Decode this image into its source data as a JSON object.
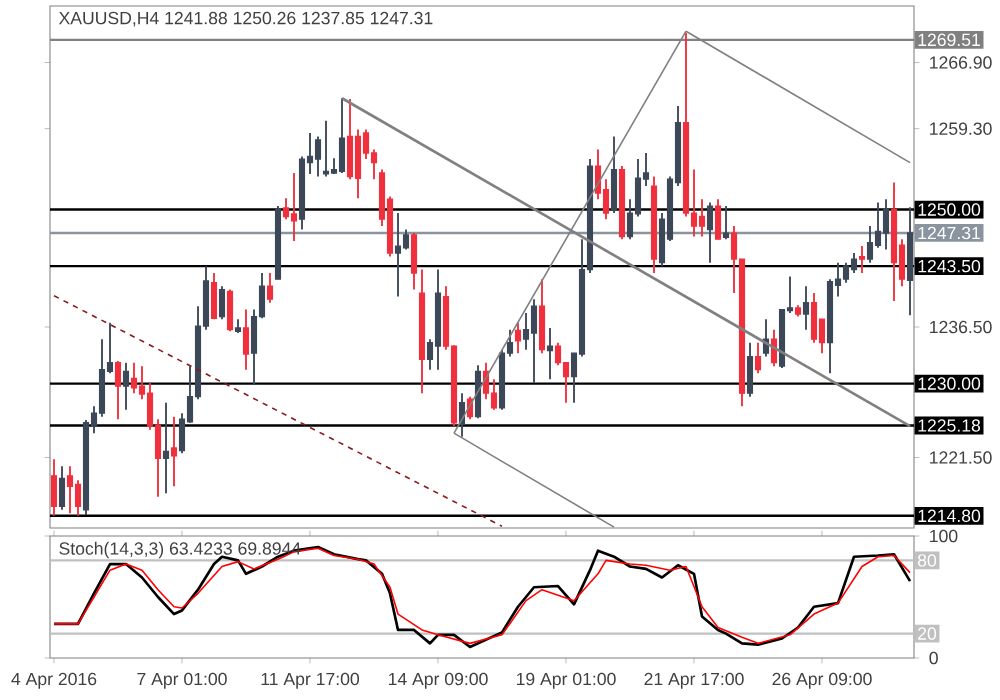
{
  "chart_data": [
    {
      "type": "candlestick",
      "title": "XAUUSD,H4  1241.88 1250.26 1237.85 1247.31",
      "categories": [
        null,
        null,
        null,
        null,
        null,
        null,
        null,
        null,
        null,
        null,
        null,
        null,
        null,
        null,
        null,
        null,
        null,
        null,
        null,
        null,
        null,
        null,
        null,
        null,
        null,
        null,
        null,
        null,
        null,
        null,
        null,
        null,
        null,
        null,
        null,
        null,
        null,
        null,
        null,
        null,
        null,
        null,
        null,
        null,
        null,
        null,
        null,
        null,
        null,
        null,
        null,
        null,
        null,
        null,
        null,
        null,
        null,
        null,
        null,
        null,
        null,
        null,
        null,
        null,
        null,
        null,
        null,
        null,
        null,
        null,
        null,
        null,
        null,
        null,
        null,
        null,
        null,
        null,
        null,
        null,
        null,
        null,
        null,
        null,
        null,
        null,
        null,
        null,
        null,
        null,
        null,
        null,
        null,
        null,
        null,
        null,
        null,
        null,
        null,
        null,
        null,
        null,
        null,
        null,
        null,
        null,
        null,
        null
      ],
      "ohlc": [
        [
          1219.4,
          1221.3,
          1214.8,
          1215.9
        ],
        [
          1215.9,
          1220.5,
          1215.5,
          1219.1
        ],
        [
          1219.4,
          1220.5,
          1215.1,
          1218.2
        ],
        [
          1218.4,
          1218.9,
          1214.8,
          1215.9
        ],
        [
          1215.5,
          1225.8,
          1214.9,
          1225.5
        ],
        [
          1225.1,
          1227.4,
          1224.3,
          1226.6
        ],
        [
          1226.6,
          1235.1,
          1226.2,
          1231.6
        ],
        [
          1231.4,
          1237.0,
          1231.2,
          1232.4
        ],
        [
          1232.4,
          1232.6,
          1225.9,
          1229.7
        ],
        [
          1229.7,
          1232.4,
          1227.0,
          1231.4
        ],
        [
          1230.6,
          1232.4,
          1228.9,
          1229.5
        ],
        [
          1229.7,
          1232.0,
          1228.2,
          1228.8
        ],
        [
          1228.9,
          1230.1,
          1224.7,
          1225.1
        ],
        [
          1225.2,
          1225.9,
          1217.0,
          1221.4
        ],
        [
          1221.4,
          1227.8,
          1217.4,
          1222.2
        ],
        [
          1222.6,
          1226.2,
          1218.2,
          1221.7
        ],
        [
          1222.3,
          1226.6,
          1222.0,
          1225.9
        ],
        [
          1225.6,
          1232.0,
          1225.5,
          1228.5
        ],
        [
          1228.5,
          1238.9,
          1228.2,
          1236.6
        ],
        [
          1236.6,
          1243.5,
          1236.2,
          1241.8
        ],
        [
          1241.6,
          1242.7,
          1237.4,
          1237.5
        ],
        [
          1237.7,
          1241.2,
          1237.4,
          1240.8
        ],
        [
          1240.6,
          1240.8,
          1236.0,
          1236.2
        ],
        [
          1236.0,
          1237.4,
          1235.8,
          1236.4
        ],
        [
          1236.4,
          1238.5,
          1231.6,
          1233.4
        ],
        [
          1233.5,
          1238.5,
          1229.9,
          1237.7
        ],
        [
          1237.7,
          1242.7,
          1237.5,
          1241.2
        ],
        [
          1241.2,
          1242.7,
          1239.3,
          1239.7
        ],
        [
          1242.0,
          1250.4,
          1242.0,
          1250.0
        ],
        [
          1250.2,
          1251.3,
          1248.9,
          1249.2
        ],
        [
          1249.5,
          1254.2,
          1246.4,
          1248.7
        ],
        [
          1248.9,
          1256.1,
          1247.7,
          1255.8
        ],
        [
          1255.4,
          1258.8,
          1254.1,
          1256.1
        ],
        [
          1255.8,
          1258.4,
          1253.8,
          1258.0
        ],
        [
          1254.1,
          1260.2,
          1253.8,
          1254.4
        ],
        [
          1254.2,
          1255.9,
          1254.1,
          1254.6
        ],
        [
          1254.4,
          1262.8,
          1254.2,
          1258.2
        ],
        [
          1258.4,
          1262.7,
          1253.5,
          1253.8
        ],
        [
          1258.4,
          1259.2,
          1251.3,
          1253.6
        ],
        [
          1258.8,
          1259.2,
          1255.8,
          1256.5
        ],
        [
          1256.5,
          1256.9,
          1253.5,
          1255.4
        ],
        [
          1254.2,
          1254.6,
          1248.1,
          1248.9
        ],
        [
          1251.2,
          1251.5,
          1244.6,
          1245.0
        ],
        [
          1245.0,
          1249.6,
          1240.0,
          1245.8
        ],
        [
          1245.6,
          1247.7,
          1245.4,
          1247.1
        ],
        [
          1247.1,
          1247.3,
          1240.8,
          1242.7
        ],
        [
          1240.4,
          1243.1,
          1228.9,
          1232.8
        ],
        [
          1232.8,
          1235.1,
          1231.6,
          1234.7
        ],
        [
          1234.3,
          1243.1,
          1231.6,
          1240.4
        ],
        [
          1240.0,
          1241.2,
          1233.9,
          1234.3
        ],
        [
          1234.3,
          1234.4,
          1225.1,
          1225.5
        ],
        [
          1225.3,
          1228.9,
          1223.9,
          1227.8
        ],
        [
          1228.2,
          1228.5,
          1225.9,
          1226.2
        ],
        [
          1226.2,
          1232.1,
          1226.0,
          1231.4
        ],
        [
          1231.4,
          1232.4,
          1228.2,
          1228.9
        ],
        [
          1228.9,
          1230.5,
          1227.0,
          1227.2
        ],
        [
          1227.2,
          1233.9,
          1227.0,
          1233.5
        ],
        [
          1233.5,
          1236.2,
          1233.1,
          1234.7
        ],
        [
          1236.1,
          1237.0,
          1233.5,
          1234.9
        ],
        [
          1235.1,
          1238.1,
          1233.9,
          1236.2
        ],
        [
          1235.8,
          1239.7,
          1230.1,
          1238.9
        ],
        [
          1238.9,
          1242.0,
          1233.5,
          1233.9
        ],
        [
          1233.8,
          1236.4,
          1230.5,
          1234.3
        ],
        [
          1234.3,
          1234.7,
          1232.1,
          1232.4
        ],
        [
          1232.4,
          1232.4,
          1227.8,
          1230.8
        ],
        [
          1230.8,
          1233.5,
          1227.8,
          1233.5
        ],
        [
          1233.4,
          1246.6,
          1233.1,
          1243.1
        ],
        [
          1243.1,
          1255.8,
          1242.7,
          1255.0
        ],
        [
          1255.0,
          1256.9,
          1251.2,
          1251.9
        ],
        [
          1252.3,
          1253.5,
          1248.9,
          1249.6
        ],
        [
          1250.0,
          1258.4,
          1249.6,
          1254.6
        ],
        [
          1254.6,
          1255.0,
          1246.6,
          1246.9
        ],
        [
          1246.9,
          1251.2,
          1246.6,
          1249.6
        ],
        [
          1249.5,
          1255.8,
          1249.2,
          1253.6
        ],
        [
          1253.5,
          1256.5,
          1252.7,
          1254.2
        ],
        [
          1252.7,
          1253.8,
          1242.7,
          1244.3
        ],
        [
          1243.9,
          1249.6,
          1243.5,
          1248.9
        ],
        [
          1246.6,
          1253.8,
          1246.4,
          1253.5
        ],
        [
          1253.1,
          1261.9,
          1252.7,
          1260.0
        ],
        [
          1260.0,
          1270.3,
          1249.2,
          1249.6
        ],
        [
          1249.6,
          1254.6,
          1246.9,
          1248.1
        ],
        [
          1249.2,
          1251.2,
          1246.9,
          1248.1
        ],
        [
          1247.7,
          1250.8,
          1243.9,
          1250.4
        ],
        [
          1250.4,
          1251.2,
          1246.6,
          1246.6
        ],
        [
          1246.8,
          1250.4,
          1246.6,
          1247.3
        ],
        [
          1247.3,
          1248.1,
          1240.4,
          1244.3
        ],
        [
          1244.3,
          1244.3,
          1227.4,
          1228.9
        ],
        [
          1228.9,
          1234.7,
          1228.5,
          1233.1
        ],
        [
          1233.1,
          1234.7,
          1231.2,
          1231.6
        ],
        [
          1233.5,
          1237.4,
          1233.1,
          1235.1
        ],
        [
          1235.1,
          1236.2,
          1232.0,
          1232.4
        ],
        [
          1232.0,
          1238.5,
          1231.8,
          1238.5
        ],
        [
          1238.4,
          1242.3,
          1238.1,
          1238.7
        ],
        [
          1238.7,
          1239.0,
          1237.7,
          1238.0
        ],
        [
          1238.0,
          1241.2,
          1236.2,
          1239.3
        ],
        [
          1239.3,
          1240.4,
          1234.7,
          1235.1
        ],
        [
          1237.4,
          1237.4,
          1233.5,
          1234.7
        ],
        [
          1234.7,
          1242.0,
          1231.2,
          1241.7
        ],
        [
          1241.3,
          1243.9,
          1240.0,
          1242.0
        ],
        [
          1242.0,
          1243.9,
          1241.6,
          1243.5
        ],
        [
          1243.1,
          1245.0,
          1242.7,
          1244.3
        ],
        [
          1244.6,
          1245.8,
          1242.7,
          1244.3
        ],
        [
          1244.3,
          1248.1,
          1243.9,
          1246.2
        ],
        [
          1245.9,
          1250.8,
          1245.6,
          1247.5
        ],
        [
          1247.3,
          1251.2,
          1245.4,
          1250.0
        ],
        [
          1250.0,
          1253.1,
          1239.5,
          1243.9
        ],
        [
          1245.9,
          1246.6,
          1241.2,
          1242.0
        ],
        [
          1241.88,
          1250.26,
          1237.85,
          1247.31
        ]
      ],
      "ylim": [
        1213.4,
        1273.4
      ],
      "yticks": [
        {
          "value": 1266.9,
          "label": "1266.90"
        },
        {
          "value": 1259.3,
          "label": "1259.30"
        },
        {
          "value": 1236.5,
          "label": "1236.50"
        },
        {
          "value": 1221.5,
          "label": "1221.50"
        }
      ],
      "tick_labels": "y",
      "ref_lines": [
        {
          "axis": "y",
          "value": 1269.51,
          "label": "1269.51",
          "color": "#808080"
        },
        {
          "axis": "y",
          "value": 1250.0,
          "label": "1250.00",
          "color": "#000000"
        },
        {
          "axis": "y",
          "value": 1247.31,
          "label": "1247.31",
          "color": "#8a949e"
        },
        {
          "axis": "y",
          "value": 1243.5,
          "label": "1243.50",
          "color": "#000000"
        },
        {
          "axis": "y",
          "value": 1230.0,
          "label": "1230.00",
          "color": "#000000"
        },
        {
          "axis": "y",
          "value": 1225.18,
          "label": "1225.18",
          "color": "#000000"
        },
        {
          "axis": "y",
          "value": 1214.8,
          "label": "1214.80",
          "color": "#000000"
        }
      ],
      "series": [
        {
          "type": "line",
          "color": "#808080",
          "values": [
            null,
            null,
            null,
            null,
            null,
            null,
            null,
            null,
            null,
            null,
            null,
            null,
            null,
            null,
            null,
            null,
            null,
            null,
            null,
            null,
            null,
            null,
            null,
            null,
            null,
            null,
            null,
            null,
            null,
            null,
            null,
            null,
            null,
            null,
            null,
            null,
            1262.8,
            null,
            null,
            null,
            null,
            null,
            null,
            null,
            null,
            null,
            null,
            null,
            null,
            null,
            null,
            null,
            null,
            null,
            null,
            null,
            null,
            null,
            null,
            null,
            null,
            null,
            null,
            null,
            null,
            null,
            null,
            null,
            null,
            null,
            null,
            null,
            null,
            null,
            null,
            null,
            null,
            null,
            null,
            null,
            null,
            null,
            null,
            null,
            null,
            null,
            null,
            null,
            null,
            null,
            null,
            null,
            null,
            null,
            null,
            null,
            null,
            null,
            null,
            null,
            null,
            null,
            null,
            null,
            null,
            null,
            null,
            1225.1
          ]
        },
        {
          "type": "line",
          "color": "#808080",
          "values": [
            null,
            null,
            null,
            null,
            null,
            null,
            null,
            null,
            null,
            null,
            null,
            null,
            null,
            null,
            null,
            null,
            null,
            null,
            null,
            null,
            null,
            null,
            null,
            null,
            null,
            null,
            null,
            null,
            null,
            null,
            null,
            null,
            null,
            null,
            null,
            null,
            null,
            null,
            null,
            null,
            null,
            null,
            null,
            null,
            null,
            null,
            null,
            null,
            null,
            null,
            1224.3,
            null,
            null,
            null,
            null,
            null,
            null,
            null,
            null,
            null,
            null,
            null,
            null,
            null,
            null,
            null,
            null,
            null,
            null,
            null,
            1213.5,
            null,
            null,
            null,
            null,
            null,
            null,
            null,
            null,
            null,
            null,
            null,
            null,
            null,
            null,
            null,
            null,
            null,
            null,
            null,
            null,
            null,
            null,
            null,
            null,
            null,
            null,
            null,
            null,
            null,
            null,
            null,
            null,
            null,
            null,
            null,
            null,
            null
          ]
        },
        {
          "type": "line",
          "color": "#808080",
          "values": [
            null,
            null,
            null,
            null,
            null,
            null,
            null,
            null,
            null,
            null,
            null,
            null,
            null,
            null,
            null,
            null,
            null,
            null,
            null,
            null,
            null,
            null,
            null,
            null,
            null,
            null,
            null,
            null,
            null,
            null,
            null,
            null,
            null,
            null,
            null,
            null,
            null,
            null,
            null,
            null,
            null,
            null,
            null,
            null,
            null,
            null,
            null,
            null,
            null,
            null,
            1224.3,
            null,
            null,
            null,
            null,
            null,
            null,
            null,
            null,
            null,
            null,
            null,
            null,
            null,
            null,
            null,
            null,
            null,
            null,
            null,
            null,
            null,
            null,
            null,
            null,
            null,
            null,
            null,
            null,
            1270.5,
            null,
            null,
            null,
            null,
            null,
            null,
            null,
            null,
            null,
            null,
            null,
            null,
            null,
            null,
            null,
            null,
            null,
            null,
            null,
            null,
            null,
            null,
            null,
            null,
            null,
            null,
            null,
            null
          ]
        },
        {
          "type": "line",
          "color": "#808080",
          "values": [
            null,
            null,
            null,
            null,
            null,
            null,
            null,
            null,
            null,
            null,
            null,
            null,
            null,
            null,
            null,
            null,
            null,
            null,
            null,
            null,
            null,
            null,
            null,
            null,
            null,
            null,
            null,
            null,
            null,
            null,
            null,
            null,
            null,
            null,
            null,
            null,
            null,
            null,
            null,
            null,
            null,
            null,
            null,
            null,
            null,
            null,
            null,
            null,
            null,
            null,
            null,
            null,
            null,
            null,
            null,
            null,
            null,
            null,
            null,
            null,
            null,
            null,
            null,
            null,
            null,
            null,
            null,
            null,
            null,
            null,
            null,
            null,
            null,
            null,
            null,
            null,
            null,
            null,
            null,
            1270.5,
            null,
            null,
            null,
            null,
            null,
            null,
            null,
            null,
            null,
            null,
            null,
            null,
            null,
            null,
            null,
            null,
            null,
            null,
            null,
            null,
            null,
            null,
            null,
            null,
            null,
            null,
            null,
            1255.4
          ]
        },
        {
          "type": "line",
          "color": "#8b1a1a",
          "line_style": "dashed",
          "values": [
            1240.1,
            null,
            null,
            null,
            null,
            null,
            null,
            null,
            null,
            null,
            null,
            null,
            null,
            null,
            null,
            null,
            null,
            null,
            null,
            null,
            null,
            null,
            null,
            null,
            null,
            null,
            null,
            null,
            null,
            null,
            null,
            null,
            null,
            null,
            null,
            null,
            null,
            null,
            null,
            null,
            null,
            null,
            null,
            null,
            null,
            null,
            null,
            null,
            null,
            null,
            null,
            null,
            null,
            null,
            null,
            null,
            1213.6,
            null,
            null,
            null,
            null,
            null,
            null,
            null,
            null,
            null,
            null,
            null,
            null,
            null,
            null,
            null,
            null,
            null,
            null,
            null,
            null,
            null,
            null,
            null,
            null,
            null,
            null,
            null,
            null,
            null,
            null,
            null,
            null,
            null,
            null,
            null,
            null,
            null,
            null,
            null,
            null,
            null,
            null,
            null,
            null,
            null,
            null,
            null,
            null,
            null,
            null,
            null
          ]
        }
      ]
    },
    {
      "type": "line",
      "title": "Stoch(14,3,3) 63.4233 69.8944",
      "ylim": [
        0,
        100
      ],
      "yticks": [
        0,
        100
      ],
      "categories": [
        "4 Apr 2016",
        null,
        null,
        null,
        null,
        null,
        null,
        null,
        null,
        null,
        null,
        null,
        null,
        null,
        null,
        null,
        "7 Apr 01:00",
        null,
        null,
        null,
        null,
        null,
        null,
        null,
        null,
        null,
        null,
        null,
        null,
        null,
        null,
        null,
        "11 Apr 17:00",
        null,
        null,
        null,
        null,
        null,
        null,
        null,
        null,
        null,
        null,
        null,
        null,
        null,
        null,
        null,
        "14 Apr 09:00",
        null,
        null,
        null,
        null,
        null,
        null,
        null,
        null,
        null,
        null,
        null,
        null,
        null,
        null,
        null,
        "19 Apr 01:00",
        null,
        null,
        null,
        null,
        null,
        null,
        null,
        null,
        null,
        null,
        null,
        null,
        null,
        null,
        null,
        "21 Apr 17:00",
        null,
        null,
        null,
        null,
        null,
        null,
        null,
        null,
        null,
        null,
        null,
        null,
        null,
        null,
        null,
        "26 Apr 09:00",
        null,
        null,
        null,
        null,
        null,
        null,
        null,
        null,
        null,
        null,
        null
      ],
      "ref_lines": [
        {
          "axis": "y",
          "value": 80,
          "label": "80",
          "color": "#c0c0c0"
        },
        {
          "axis": "y",
          "value": 20,
          "label": "20",
          "color": "#c0c0c0"
        }
      ],
      "series": [
        {
          "color": "#000000",
          "values": [
            28,
            null,
            null,
            28,
            null,
            53,
            null,
            77,
            null,
            77,
            null,
            66,
            null,
            50,
            null,
            36,
            39,
            null,
            56,
            null,
            77,
            83,
            null,
            80,
            69,
            null,
            75,
            null,
            83,
            null,
            88,
            null,
            null,
            91,
            null,
            85,
            null,
            null,
            81,
            80,
            null,
            69,
            53,
            23,
            null,
            23,
            null,
            12,
            19,
            null,
            19,
            null,
            9,
            null,
            15,
            null,
            21,
            null,
            42,
            null,
            58,
            null,
            null,
            59,
            null,
            44,
            null,
            72,
            88,
            null,
            83,
            null,
            75,
            null,
            73,
            null,
            66,
            null,
            76,
            null,
            69,
            34,
            null,
            23,
            20,
            null,
            12,
            null,
            11,
            null,
            null,
            16,
            null,
            25,
            null,
            42,
            null,
            null,
            45,
            null,
            83,
            null,
            null,
            84,
            null,
            85,
            null,
            63
          ]
        },
        {
          "color": "#ff0000",
          "values": [
            28,
            null,
            null,
            28,
            null,
            50,
            null,
            72,
            null,
            77,
            null,
            72,
            null,
            56,
            null,
            42,
            41,
            null,
            53,
            null,
            null,
            75,
            null,
            79,
            null,
            73,
            null,
            null,
            81,
            null,
            87,
            null,
            null,
            90,
            null,
            84,
            null,
            null,
            81,
            null,
            77,
            null,
            58,
            36,
            null,
            null,
            23,
            null,
            19,
            null,
            null,
            null,
            12,
            null,
            null,
            null,
            19,
            null,
            null,
            47,
            null,
            56,
            null,
            null,
            null,
            47,
            null,
            null,
            69,
            80,
            null,
            null,
            77,
            null,
            76,
            null,
            null,
            72,
            null,
            75,
            null,
            42,
            null,
            25,
            null,
            null,
            17,
            null,
            12,
            null,
            null,
            null,
            19,
            null,
            null,
            36,
            null,
            null,
            45,
            null,
            null,
            75,
            null,
            83,
            null,
            84,
            null,
            70
          ]
        }
      ]
    }
  ]
}
